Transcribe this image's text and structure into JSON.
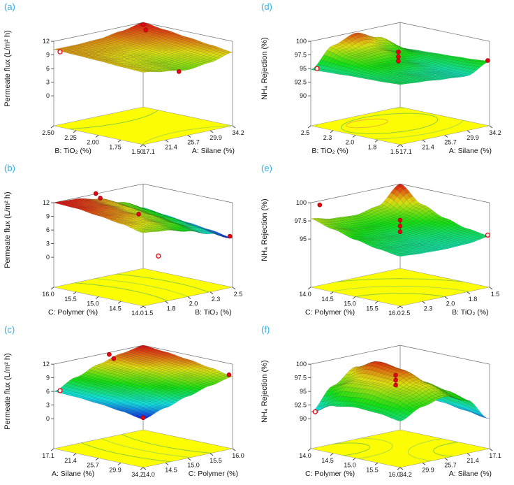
{
  "chart_data": [
    {
      "id": "a",
      "label": "(a)",
      "type": "3d-response-surface-with-contour-floor",
      "z_axis": {
        "title": "Permeate flux (L/m² h)",
        "min": 0,
        "max": 12,
        "ticks": [
          {
            "label": "0",
            "value": 0
          },
          {
            "label": "3",
            "value": 3
          },
          {
            "label": "6",
            "value": 6
          },
          {
            "label": "9",
            "value": 9
          },
          {
            "label": "12",
            "value": 12
          }
        ]
      },
      "left_axis": {
        "title": "B: TiO₂ (%)",
        "tick_labels": [
          "2.50",
          "2.25",
          "2.00",
          "1.75",
          "1.50"
        ]
      },
      "right_axis": {
        "title": "A: Silane (%)",
        "tick_labels": [
          "17.1",
          "21.4",
          "25.7",
          "29.9",
          "34.2"
        ]
      },
      "surface_grid": {
        "z": [
          [
            9.3,
            8.5,
            7.8,
            8.4,
            9.6
          ],
          [
            9.5,
            8.9,
            8.4,
            9.0,
            10.2
          ],
          [
            9.8,
            9.3,
            9.0,
            9.7,
            10.8
          ],
          [
            10.0,
            9.8,
            9.7,
            10.4,
            11.4
          ],
          [
            10.2,
            10.2,
            10.4,
            11.1,
            12.0
          ]
        ]
      },
      "design_points": [
        [
          0.93,
          0.93,
          12.1,
          0
        ],
        [
          0.9,
          0.87,
          11.3,
          0
        ],
        [
          0.5,
          0.1,
          7.0,
          0
        ],
        [
          0.02,
          0.95,
          9.8,
          1
        ]
      ],
      "contours": [
        {
          "u": 0.5,
          "v": 1.3,
          "rx": 0.8,
          "ry": 0.6,
          "color": "#6cc24a"
        },
        {
          "u": 0.5,
          "v": -0.4,
          "rx": 0.75,
          "ry": 0.55,
          "color": "#9ad34f"
        }
      ],
      "style": {
        "color_span": [
          0.62,
          1.0
        ],
        "floor_color": "#fcfc05",
        "label_color": "#2bb0e8"
      }
    },
    {
      "id": "b",
      "label": "(b)",
      "type": "3d-response-surface-with-contour-floor",
      "z_axis": {
        "title": "Permeate flux (L/m² h)",
        "min": 0,
        "max": 12,
        "ticks": [
          {
            "label": "0",
            "value": 0
          },
          {
            "label": "3",
            "value": 3
          },
          {
            "label": "6",
            "value": 6
          },
          {
            "label": "9",
            "value": 9
          },
          {
            "label": "12",
            "value": 12
          }
        ]
      },
      "left_axis": {
        "title": "C: Polymer (%)",
        "tick_labels": [
          "16.0",
          "15.5",
          "15.0",
          "14.5",
          "14.0"
        ]
      },
      "right_axis": {
        "title": "B: TiO₂ (%)",
        "tick_labels": [
          "1.5",
          "1.8",
          "2.0",
          "2.3",
          "2.5"
        ]
      },
      "surface_grid": {
        "z": [
          [
            9.5,
            9.0,
            7.8,
            6.2,
            4.2
          ],
          [
            10.5,
            10.0,
            8.8,
            7.0,
            5.0
          ],
          [
            11.2,
            10.8,
            9.5,
            7.8,
            5.6
          ],
          [
            11.8,
            11.4,
            10.2,
            8.4,
            6.2
          ],
          [
            12.0,
            11.8,
            10.8,
            9.0,
            6.8
          ]
        ]
      },
      "design_points": [
        [
          0.42,
          0.95,
          12.5,
          0
        ],
        [
          0.42,
          0.9,
          11.7,
          0
        ],
        [
          0.45,
          0.5,
          9.7,
          0
        ],
        [
          1.0,
          0.03,
          4.5,
          0
        ],
        [
          0.45,
          0.28,
          1.4,
          1
        ]
      ],
      "contours": [
        {
          "u": -0.15,
          "v": 0.45,
          "rx": 0.5,
          "ry": 0.85,
          "color": "#6cc24a"
        },
        {
          "u": -0.15,
          "v": 0.45,
          "rx": 0.72,
          "ry": 1.05,
          "color": "#9ad34f"
        },
        {
          "u": -0.15,
          "v": 0.45,
          "rx": 0.95,
          "ry": 1.25,
          "color": "#6cc24a"
        }
      ],
      "style": {
        "color_span": [
          0.02,
          1.0
        ],
        "floor_color": "#fcfc05",
        "label_color": "#2bb0e8"
      }
    },
    {
      "id": "c",
      "label": "(c)",
      "type": "3d-response-surface-with-contour-floor",
      "z_axis": {
        "title": "Permeate flux (L/m² h)",
        "min": 0,
        "max": 12,
        "ticks": [
          {
            "label": "0",
            "value": 0
          },
          {
            "label": "3",
            "value": 3
          },
          {
            "label": "6",
            "value": 6
          },
          {
            "label": "9",
            "value": 9
          },
          {
            "label": "12",
            "value": 12
          }
        ]
      },
      "left_axis": {
        "title": "A: Silane (%)",
        "tick_labels": [
          "17.1",
          "21.4",
          "25.7",
          "29.9",
          "34.2"
        ]
      },
      "right_axis": {
        "title": "C: Polymer (%)",
        "tick_labels": [
          "14.0",
          "14.5",
          "15.0",
          "15.5",
          "16.0"
        ]
      },
      "surface_grid": {
        "z": [
          [
            4.0,
            5.5,
            7.0,
            8.3,
            9.3
          ],
          [
            4.8,
            6.4,
            7.9,
            9.2,
            10.2
          ],
          [
            5.4,
            7.1,
            8.7,
            10.0,
            11.0
          ],
          [
            5.8,
            7.7,
            9.4,
            10.7,
            11.6
          ],
          [
            6.0,
            8.1,
            9.9,
            11.2,
            12.0
          ]
        ]
      },
      "design_points": [
        [
          0.52,
          0.9,
          12.4,
          0
        ],
        [
          0.52,
          0.85,
          11.7,
          0
        ],
        [
          1.0,
          0.04,
          9.5,
          0
        ],
        [
          0.03,
          0.03,
          4.1,
          0
        ],
        [
          0.02,
          0.95,
          6.3,
          1
        ]
      ],
      "contours": [
        {
          "u": 1.15,
          "v": 0.5,
          "rx": 0.48,
          "ry": 0.85,
          "color": "#6cc24a"
        },
        {
          "u": 1.15,
          "v": 0.5,
          "rx": 0.7,
          "ry": 1.05,
          "color": "#9ad34f"
        },
        {
          "u": 1.15,
          "v": 0.5,
          "rx": 0.92,
          "ry": 1.25,
          "color": "#6cc24a"
        }
      ],
      "style": {
        "color_span": [
          0.02,
          1.0
        ],
        "floor_color": "#fcfc05",
        "label_color": "#2bb0e8"
      }
    },
    {
      "id": "d",
      "label": "(d)",
      "type": "3d-response-surface-with-contour-floor",
      "z_axis": {
        "title": "NH₄ Rejection (%)",
        "min": 90,
        "max": 100,
        "ticks": [
          {
            "label": "90",
            "value": 90
          },
          {
            "label": "92.5",
            "value": 92.5
          },
          {
            "label": "95",
            "value": 95
          },
          {
            "label": "97.5",
            "value": 97.5
          },
          {
            "label": "100",
            "value": 100
          }
        ]
      },
      "left_axis": {
        "title": "B: TiO₂ (%)",
        "tick_labels": [
          "2.5",
          "2.3",
          "2.0",
          "1.8",
          "1.5"
        ]
      },
      "right_axis": {
        "title": "A: Silane (%)",
        "tick_labels": [
          "17.1",
          "21.4",
          "25.7",
          "29.9",
          "34.2"
        ]
      },
      "surface_grid": {
        "z": [
          [
            95.5,
            95.2,
            94.8,
            94.5,
            96.3
          ],
          [
            95.3,
            95.5,
            95.0,
            94.6,
            96.0
          ],
          [
            95.2,
            96.2,
            96.0,
            95.2,
            95.8
          ],
          [
            95.0,
            97.2,
            97.6,
            96.4,
            95.6
          ],
          [
            94.8,
            98.4,
            99.8,
            98.2,
            95.4
          ]
        ]
      },
      "design_points": [
        [
          0.5,
          0.52,
          98.0,
          0
        ],
        [
          0.5,
          0.52,
          97.1,
          0
        ],
        [
          0.5,
          0.52,
          96.3,
          0
        ],
        [
          1.0,
          0.02,
          96.4,
          0
        ],
        [
          0.02,
          0.95,
          95.1,
          1
        ]
      ],
      "contours": [
        {
          "u": 0.5,
          "v": 0.62,
          "rx": 0.45,
          "ry": 0.3,
          "color": "#6cc24a"
        },
        {
          "u": 0.5,
          "v": 0.62,
          "rx": 0.68,
          "ry": 0.48,
          "color": "#9ad34f"
        },
        {
          "u": 0.38,
          "v": 0.75,
          "rx": 0.2,
          "ry": 0.12,
          "color": "#e6a23c"
        }
      ],
      "style": {
        "color_span": [
          0.3,
          0.93
        ],
        "floor_color": "#fcfc05",
        "label_color": "#2bb0e8"
      }
    },
    {
      "id": "e",
      "label": "(e)",
      "type": "3d-response-surface-with-contour-floor",
      "z_axis": {
        "title": "NH₄ Rejection (%)",
        "min": 92.5,
        "max": 100,
        "ticks": [
          {
            "label": "95",
            "value": 95
          },
          {
            "label": "97.5",
            "value": 97.5
          },
          {
            "label": "100",
            "value": 100
          }
        ]
      },
      "left_axis": {
        "title": "C: Polymer (%)",
        "tick_labels": [
          "14.0",
          "14.5",
          "15.0",
          "15.5",
          "16.0"
        ]
      },
      "right_axis": {
        "title": "B: TiO₂ (%)",
        "tick_labels": [
          "2.5",
          "2.3",
          "2.0",
          "1.8",
          "1.5"
        ]
      },
      "surface_grid": {
        "z": [
          [
            95.2,
            95.0,
            94.9,
            95.0,
            95.4
          ],
          [
            95.6,
            95.3,
            95.1,
            95.3,
            95.8
          ],
          [
            96.2,
            95.8,
            95.5,
            95.8,
            96.6
          ],
          [
            97.0,
            96.4,
            96.2,
            96.6,
            97.8
          ],
          [
            97.8,
            97.2,
            97.0,
            97.6,
            100.0
          ]
        ]
      },
      "design_points": [
        [
          0.5,
          0.5,
          97.6,
          0
        ],
        [
          0.5,
          0.5,
          96.8,
          0
        ],
        [
          0.5,
          0.5,
          96.0,
          0
        ],
        [
          1.0,
          0.02,
          95.5,
          1
        ],
        [
          0.05,
          0.95,
          99.7,
          0
        ]
      ],
      "contours": [
        {
          "u": -0.05,
          "v": -0.05,
          "rx": 0.55,
          "ry": 0.55,
          "color": "#6cc24a"
        },
        {
          "u": -0.05,
          "v": -0.05,
          "rx": 0.82,
          "ry": 0.82,
          "color": "#9ad34f"
        },
        {
          "u": -0.05,
          "v": -0.05,
          "rx": 1.1,
          "ry": 1.1,
          "color": "#6cc24a"
        }
      ],
      "style": {
        "color_span": [
          0.32,
          1.0
        ],
        "floor_color": "#fcfc05",
        "label_color": "#2bb0e8"
      }
    },
    {
      "id": "f",
      "label": "(f)",
      "type": "3d-response-surface-with-contour-floor",
      "z_axis": {
        "title": "NH₄ Rejection (%)",
        "min": 90,
        "max": 100,
        "ticks": [
          {
            "label": "90",
            "value": 90
          },
          {
            "label": "92.5",
            "value": 92.5
          },
          {
            "label": "95",
            "value": 95
          },
          {
            "label": "97.5",
            "value": 97.5
          },
          {
            "label": "100",
            "value": 100
          }
        ]
      },
      "left_axis": {
        "title": "C: Polymer (%)",
        "tick_labels": [
          "14.0",
          "14.5",
          "15.0",
          "15.5",
          "16.0"
        ]
      },
      "right_axis": {
        "title": "A: Silane (%)",
        "tick_labels": [
          "34.2",
          "29.9",
          "25.7",
          "21.4",
          "17.1"
        ]
      },
      "surface_grid": {
        "z": [
          [
            93.0,
            94.8,
            95.8,
            94.2,
            90.0
          ],
          [
            93.6,
            96.2,
            97.4,
            95.2,
            90.6
          ],
          [
            93.8,
            97.0,
            99.0,
            96.0,
            91.2
          ],
          [
            93.2,
            96.8,
            99.6,
            96.2,
            91.6
          ],
          [
            91.2,
            95.2,
            97.8,
            95.4,
            92.0
          ]
        ]
      },
      "design_points": [
        [
          0.5,
          0.55,
          97.8,
          0
        ],
        [
          0.5,
          0.55,
          96.9,
          0
        ],
        [
          0.5,
          0.55,
          96.0,
          0
        ],
        [
          0.02,
          0.97,
          91.3,
          1
        ]
      ],
      "contours": [
        {
          "u": 0.12,
          "v": 0.82,
          "rx": 0.3,
          "ry": 0.2,
          "color": "#6cc24a"
        },
        {
          "u": 0.12,
          "v": 0.82,
          "rx": 0.5,
          "ry": 0.36,
          "color": "#9ad34f"
        },
        {
          "u": 0.9,
          "v": 0.1,
          "rx": 0.34,
          "ry": 0.26,
          "color": "#6cc24a"
        },
        {
          "u": 0.9,
          "v": 0.1,
          "rx": 0.56,
          "ry": 0.44,
          "color": "#9ad34f"
        }
      ],
      "style": {
        "color_span": [
          0.1,
          0.96
        ],
        "floor_color": "#fcfc05",
        "label_color": "#2bb0e8"
      }
    }
  ]
}
